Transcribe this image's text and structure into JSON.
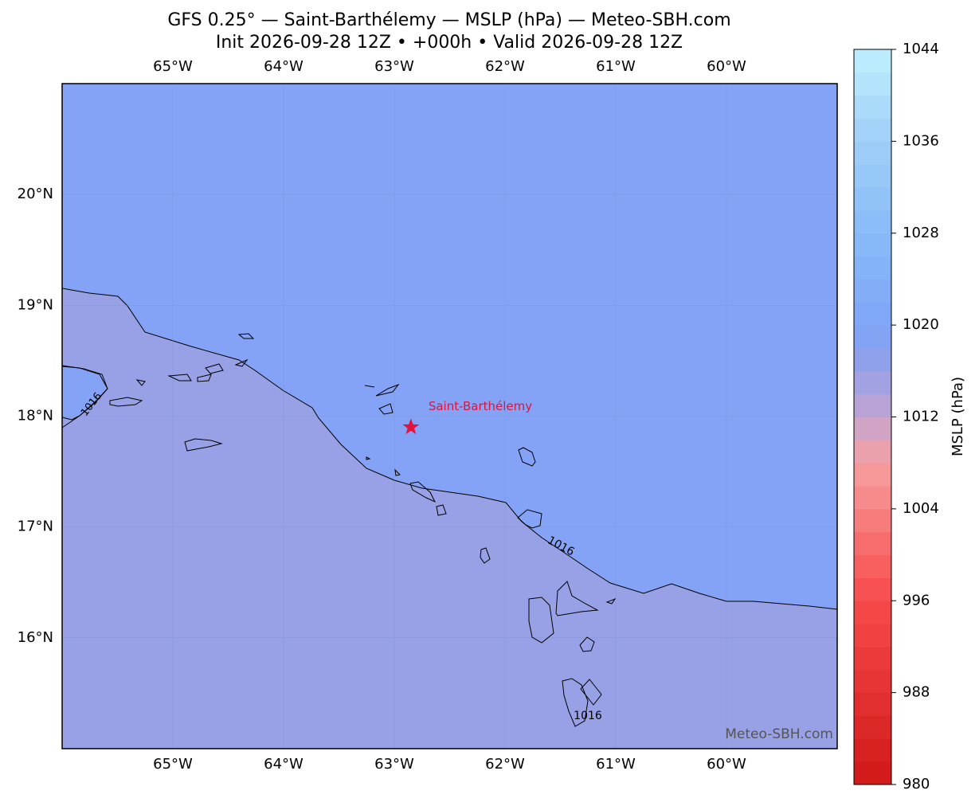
{
  "map": {
    "title": "GFS 0.25° — Saint-Barthélemy — MSLP (hPa) — Meteo-SBH.com",
    "subtitle": "Init 2026-09-28 12Z • +000h • Valid 2026-09-28 12Z",
    "lon_lim": [
      -66,
      -59
    ],
    "lat_lim": [
      15,
      21
    ],
    "lon_ticks": [
      {
        "value": -65,
        "label": "65°W"
      },
      {
        "value": -64,
        "label": "64°W"
      },
      {
        "value": -63,
        "label": "63°W"
      },
      {
        "value": -62,
        "label": "62°W"
      },
      {
        "value": -61,
        "label": "61°W"
      },
      {
        "value": -60,
        "label": "60°W"
      }
    ],
    "lat_ticks": [
      {
        "value": 20,
        "label": "20°N"
      },
      {
        "value": 19,
        "label": "19°N"
      },
      {
        "value": 18,
        "label": "18°N"
      },
      {
        "value": 17,
        "label": "17°N"
      },
      {
        "value": 16,
        "label": "16°N"
      }
    ],
    "place": {
      "name": "Saint-Barthélemy",
      "lon": -62.85,
      "lat": 17.9
    },
    "contour_labels": [
      "1016",
      "1016",
      "1016"
    ],
    "watermark": "Meteo-SBH.com",
    "colorbar": {
      "label": "MSLP (hPa)",
      "lim": [
        980,
        1044
      ],
      "ticks": [
        980,
        988,
        996,
        1004,
        1012,
        1020,
        1028,
        1036,
        1044
      ]
    }
  }
}
